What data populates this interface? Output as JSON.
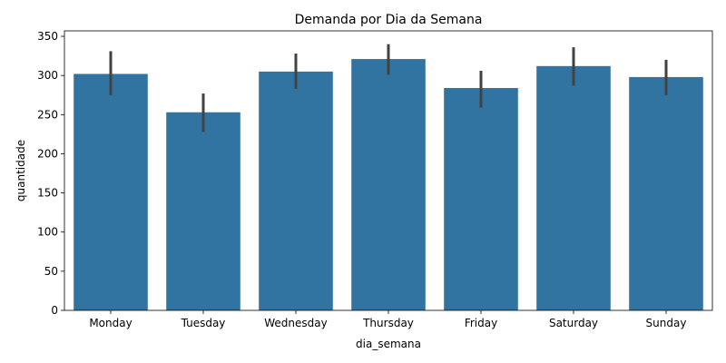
{
  "chart_data": {
    "type": "bar",
    "title": "Demanda por Dia da Semana",
    "xlabel": "dia_semana",
    "ylabel": "quantidade",
    "categories": [
      "Monday",
      "Tuesday",
      "Wednesday",
      "Thursday",
      "Friday",
      "Saturday",
      "Sunday"
    ],
    "values": [
      302,
      253,
      305,
      321,
      284,
      312,
      298
    ],
    "error_low": [
      275,
      228,
      283,
      301,
      259,
      287,
      275
    ],
    "error_high": [
      331,
      277,
      328,
      340,
      306,
      336,
      320
    ],
    "ylim": [
      0,
      357
    ],
    "yticks": [
      0,
      50,
      100,
      150,
      200,
      250,
      300,
      350
    ],
    "grid": false,
    "bar_color": "#3274a1",
    "error_color": "#424242"
  }
}
